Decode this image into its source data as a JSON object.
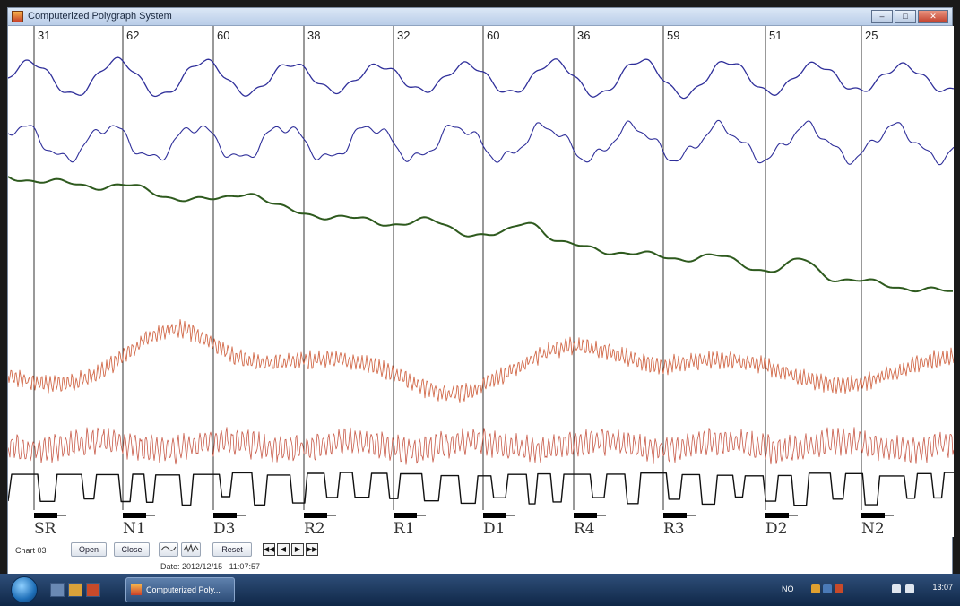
{
  "window": {
    "title": "Computerized Polygraph System"
  },
  "top_numbers": [
    "31",
    "62",
    "60",
    "38",
    "32",
    "60",
    "36",
    "59",
    "51",
    "25"
  ],
  "question_labels": [
    "SR",
    "N1",
    "D3",
    "R2",
    "R1",
    "D1",
    "R4",
    "R3",
    "D2",
    "N2"
  ],
  "controls": {
    "chart_name": "Chart 03",
    "open_label": "Open",
    "close_label": "Close",
    "reset_label": "Reset",
    "date_label": "Date:",
    "date_value": "2012/12/15",
    "time_value": "11:07:57"
  },
  "taskbar": {
    "task_label": "Computerized Poly...",
    "language": "NO",
    "clock": "13:07"
  },
  "colors": {
    "pneumo": "#2f2f9a",
    "gsr": "#2e5a1e",
    "cardio": "#d26a4a",
    "plethysmo": "#c85a48",
    "motion": "#111111"
  }
}
